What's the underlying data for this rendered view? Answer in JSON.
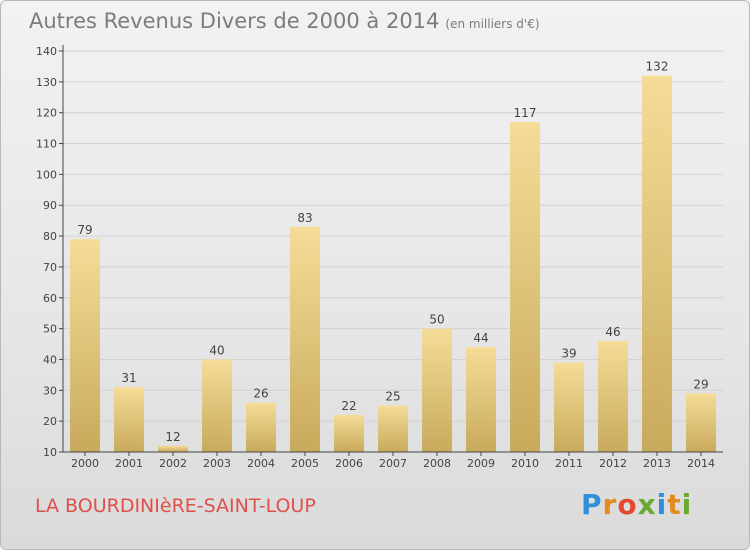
{
  "title": "Autres Revenus Divers de 2000 à 2014",
  "title_unit": "(en milliers d'€)",
  "commune": "LA BOURDINIèRE-SAINT-LOUP",
  "logo": {
    "letters": [
      "P",
      "r",
      "o",
      "x",
      "i",
      "t",
      "i"
    ],
    "colors": [
      "#2f8fd8",
      "#e58a1f",
      "#e4492f",
      "#6aaa2e",
      "#2f8fd8",
      "#e58a1f",
      "#6aaa2e"
    ]
  },
  "colors": {
    "bar_light": "#f5dc97",
    "bar_dark": "#c8aa5c",
    "axis": "#444444",
    "grid": "#d2d2d2",
    "title": "#7c7c7c",
    "commune": "#e0504a"
  },
  "chart_data": {
    "type": "bar",
    "title": "Autres Revenus Divers de 2000 à 2014",
    "xlabel": "",
    "ylabel": "",
    "ylim": [
      10,
      140
    ],
    "yticks": [
      10,
      20,
      30,
      40,
      50,
      60,
      70,
      80,
      90,
      100,
      110,
      120,
      130,
      140
    ],
    "categories": [
      "2000",
      "2001",
      "2002",
      "2003",
      "2004",
      "2005",
      "2006",
      "2007",
      "2008",
      "2009",
      "2010",
      "2011",
      "2012",
      "2013",
      "2014"
    ],
    "values": [
      79,
      31,
      12,
      40,
      26,
      83,
      22,
      25,
      50,
      44,
      117,
      39,
      46,
      132,
      29
    ],
    "grid": true,
    "legend": "none"
  }
}
